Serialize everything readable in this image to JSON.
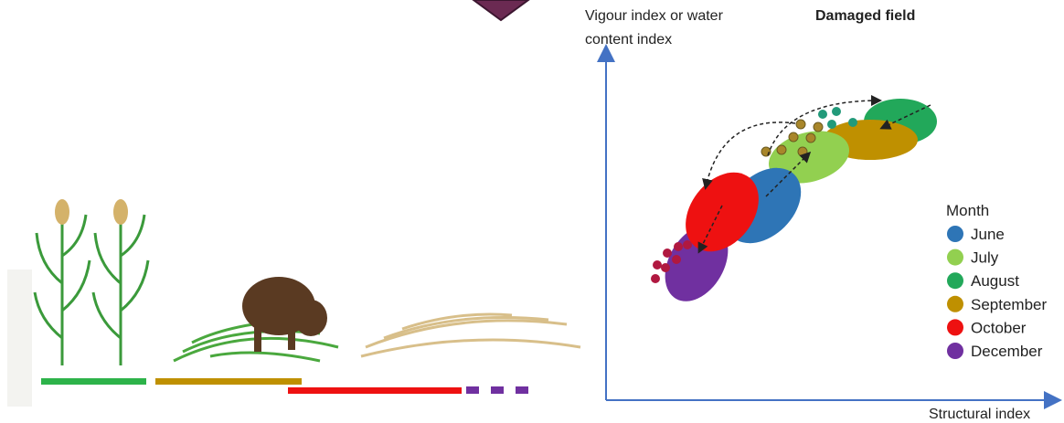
{
  "y_axis_label": [
    "Vigour index or water",
    "content index"
  ],
  "title": "Damaged field",
  "x_axis_label": "Structural index",
  "legend": {
    "title": "Month",
    "items": [
      {
        "label": "June",
        "color": "#2e75b6"
      },
      {
        "label": "July",
        "color": "#92d050"
      },
      {
        "label": "August",
        "color": "#22a85a"
      },
      {
        "label": "September",
        "color": "#bf9000"
      },
      {
        "label": "October",
        "color": "#ee1111"
      },
      {
        "label": "December",
        "color": "#7030a0"
      }
    ]
  }
}
